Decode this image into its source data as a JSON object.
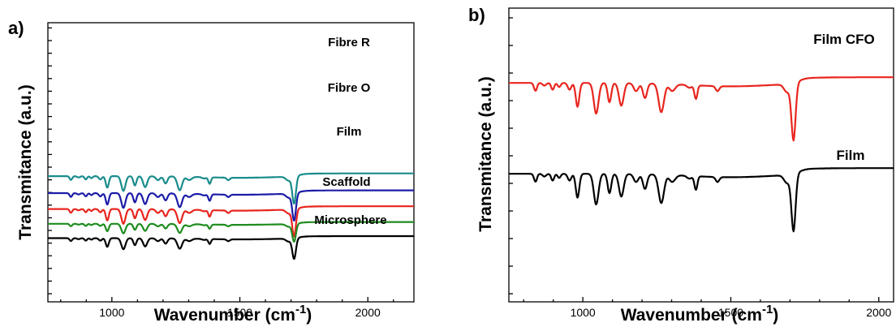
{
  "chart_data": [
    {
      "type": "line",
      "panel": "a)",
      "xlabel": "Wavenumber (cm",
      "xlabel_sup": "-1",
      "xlabel_tail": ")",
      "ylabel": "Transmitance (a.u.)",
      "xlim": [
        750,
        2180
      ],
      "xticks": [
        1000,
        1500,
        2000
      ],
      "grid": false,
      "series": [
        {
          "name": "Fibre R",
          "color": "#1a8c8c",
          "offset": 5.7,
          "depth": 1.0
        },
        {
          "name": "Fibre O",
          "color": "#1c1ca8",
          "offset": 4.15,
          "depth": 1.0
        },
        {
          "name": "Film",
          "color": "#e8251e",
          "offset": 2.7,
          "depth": 1.0
        },
        {
          "name": "Scaffold",
          "color": "#1f8c1f",
          "offset": 1.3,
          "depth": 0.65
        },
        {
          "name": "Microsphere",
          "color": "#000000",
          "offset": 0.0,
          "depth": 0.75
        }
      ]
    },
    {
      "type": "line",
      "panel": "b)",
      "xlabel": "Wavenumber (cm",
      "xlabel_sup": "-1",
      "xlabel_tail": ")",
      "ylabel": "Transmitance (a.u.)",
      "xlim": [
        750,
        2050
      ],
      "xticks": [
        1000,
        1500,
        2000
      ],
      "grid": false,
      "series": [
        {
          "name": "Film CFO",
          "color": "#e8251e",
          "offset": 4.0,
          "depth": 1.0
        },
        {
          "name": "Film",
          "color": "#000000",
          "offset": 0.0,
          "depth": 1.0
        }
      ]
    }
  ],
  "peaks": [
    {
      "x": 840,
      "d": 0.35,
      "w": 5
    },
    {
      "x": 870,
      "d": 0.12,
      "w": 6
    },
    {
      "x": 898,
      "d": 0.3,
      "w": 5
    },
    {
      "x": 920,
      "d": 0.18,
      "w": 5
    },
    {
      "x": 955,
      "d": 0.3,
      "w": 6
    },
    {
      "x": 982,
      "d": 1.05,
      "w": 6
    },
    {
      "x": 1045,
      "d": 1.35,
      "w": 8
    },
    {
      "x": 1090,
      "d": 0.85,
      "w": 6
    },
    {
      "x": 1130,
      "d": 1.0,
      "w": 8
    },
    {
      "x": 1180,
      "d": 0.35,
      "w": 8
    },
    {
      "x": 1210,
      "d": 0.65,
      "w": 7
    },
    {
      "x": 1265,
      "d": 1.25,
      "w": 9
    },
    {
      "x": 1302,
      "d": 0.3,
      "w": 10
    },
    {
      "x": 1360,
      "d": 0.12,
      "w": 8
    },
    {
      "x": 1382,
      "d": 0.6,
      "w": 5
    },
    {
      "x": 1455,
      "d": 0.22,
      "w": 6
    },
    {
      "x": 1690,
      "d": 0.35,
      "w": 10
    },
    {
      "x": 1712,
      "d": 2.5,
      "w": 7
    }
  ]
}
